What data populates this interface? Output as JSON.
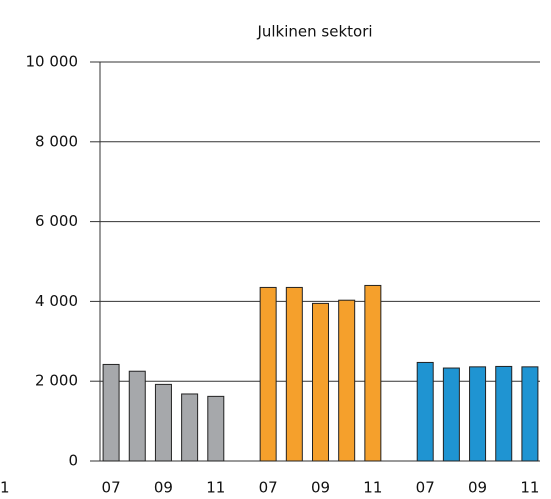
{
  "chart_data": {
    "type": "bar",
    "title": "Julkinen sektori",
    "categories": [
      "07",
      null,
      "09",
      null,
      "11",
      "07",
      null,
      "09",
      null,
      "11",
      "07",
      null,
      "09",
      null,
      "11"
    ],
    "values": [
      2420,
      2250,
      1920,
      1680,
      1620,
      4350,
      4350,
      3950,
      4030,
      4400,
      2470,
      2330,
      2360,
      2370,
      2360
    ],
    "colors": [
      "#a6a8ab",
      "#a6a8ab",
      "#a6a8ab",
      "#a6a8ab",
      "#a6a8ab",
      "#f5a02c",
      "#f5a02c",
      "#f5a02c",
      "#f5a02c",
      "#f5a02c",
      "#1f94d2",
      "#1f94d2",
      "#1f94d2",
      "#1f94d2",
      "#1f94d2"
    ],
    "group_size": 5,
    "ylim": [
      0,
      10000
    ],
    "yticks": [
      0,
      {
        "value": 2000,
        "label": "2 000"
      },
      {
        "value": 4000,
        "label": "4 000"
      },
      {
        "value": 6000,
        "label": "6 000"
      },
      {
        "value": 8000,
        "label": "8 000"
      },
      {
        "value": 10000,
        "label": "10 000"
      }
    ],
    "grid": true,
    "annotation": "1"
  }
}
